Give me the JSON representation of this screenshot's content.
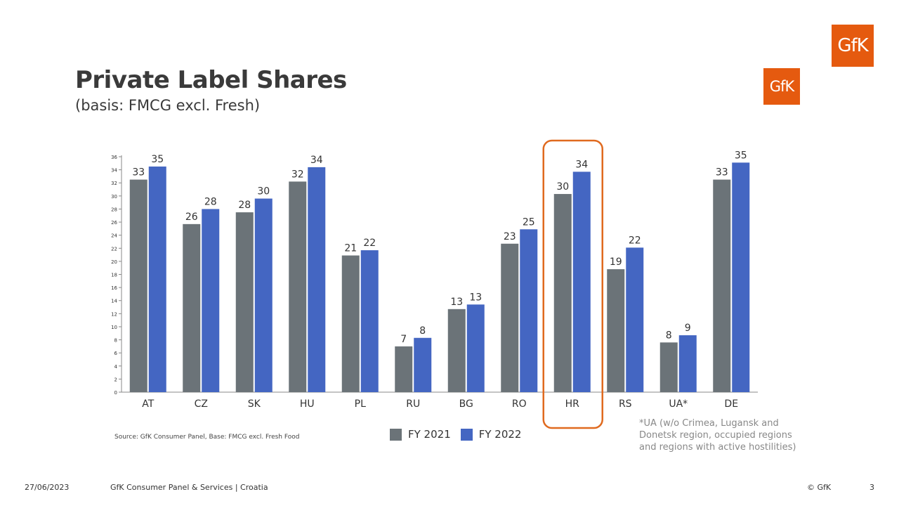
{
  "logo_text": "GfK",
  "title": "Private Label Shares",
  "subtitle": "(basis: FMCG excl. Fresh)",
  "source": "Source: GfK Consumer Panel, Base: FMCG excl. Fresh Food",
  "note": {
    "line1": "*UA (w/o Crimea, Lugansk and",
    "line2": "Donetsk region, occupied regions",
    "line3": "and regions with active hostilities)"
  },
  "footer": {
    "date": "27/06/2023",
    "center": "GfK Consumer Panel & Services | Croatia",
    "copyright": "© GfK",
    "page": "3"
  },
  "colors": {
    "fy2021": "#6b7378",
    "fy2022": "#4466c2",
    "highlight": "#e06a1f",
    "brand": "#e55a0f"
  },
  "highlight_category": "HR",
  "chart_data": {
    "type": "bar",
    "categories": [
      "AT",
      "CZ",
      "SK",
      "HU",
      "PL",
      "RU",
      "BG",
      "RO",
      "HR",
      "RS",
      "UA*",
      "DE"
    ],
    "series": [
      {
        "name": "FY 2021",
        "values": [
          32.5,
          25.7,
          27.5,
          32.2,
          20.9,
          7.0,
          12.7,
          22.7,
          30.3,
          18.8,
          7.6,
          32.5
        ],
        "labels": [
          "33",
          "26",
          "28",
          "32",
          "21",
          "7",
          "13",
          "23",
          "30",
          "19",
          "8",
          "33"
        ]
      },
      {
        "name": "FY 2022",
        "values": [
          34.5,
          28.0,
          29.6,
          34.4,
          21.7,
          8.3,
          13.4,
          24.9,
          33.7,
          22.1,
          8.7,
          35.1
        ],
        "labels": [
          "35",
          "28",
          "30",
          "34",
          "22",
          "8",
          "13",
          "25",
          "34",
          "22",
          "9",
          "35"
        ]
      }
    ],
    "ylim": [
      0,
      36
    ],
    "yticks": [
      0,
      2,
      4,
      6,
      8,
      10,
      12,
      14,
      16,
      18,
      20,
      22,
      24,
      26,
      28,
      30,
      32,
      34,
      36
    ],
    "legend": "bottom"
  }
}
